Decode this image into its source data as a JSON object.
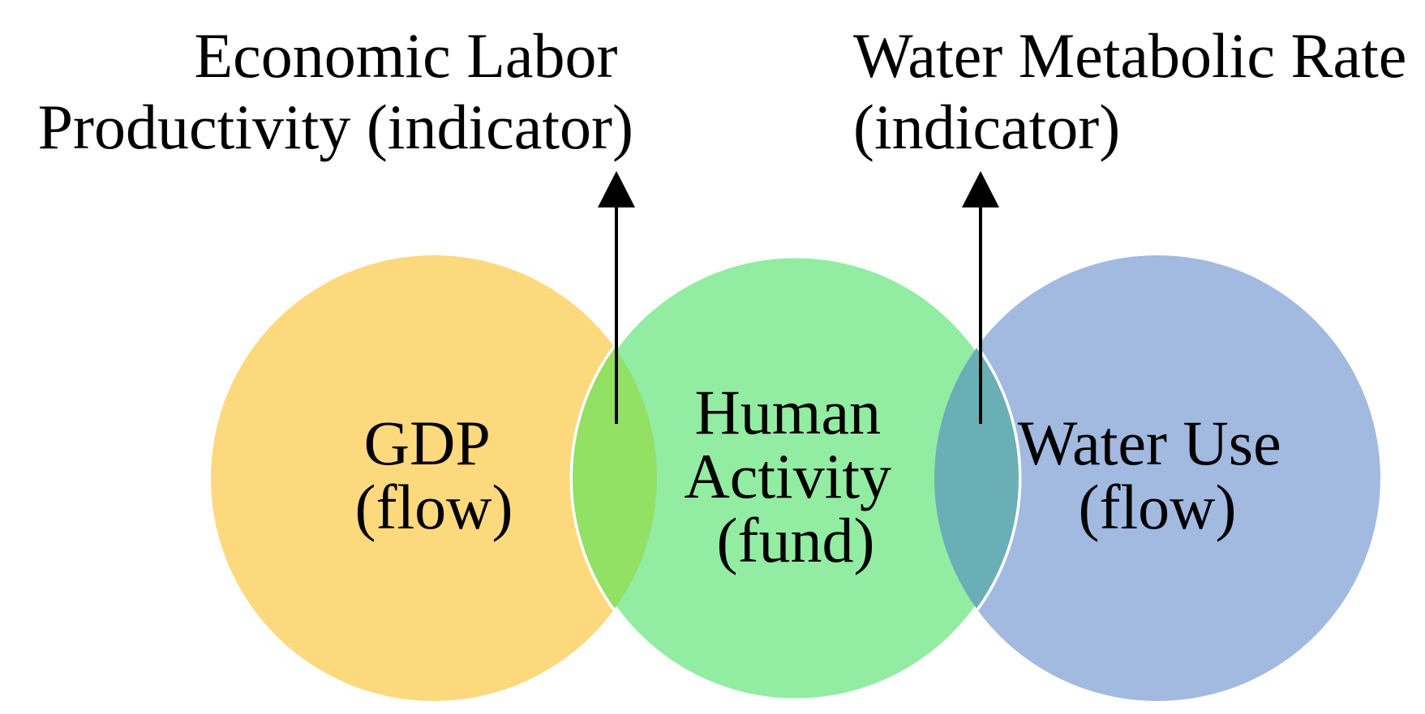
{
  "circles": [
    {
      "id": "gdp",
      "line1": "GDP",
      "line2": "(flow)",
      "color": "#fcd97d"
    },
    {
      "id": "human-activity",
      "line1": "Human",
      "line2": "Activity",
      "line3": "(fund)",
      "color": "#92eca2"
    },
    {
      "id": "water-use",
      "line1": "Water Use",
      "line2": "(flow)",
      "color": "#a2b9e0"
    }
  ],
  "overlaps": {
    "gdp_human": {
      "color": "#92e064"
    },
    "human_water": {
      "color": "#6aafb5"
    }
  },
  "indicators": [
    {
      "id": "economic-labor-productivity",
      "line1": "Economic Labor",
      "line2": "Productivity (indicator)"
    },
    {
      "id": "water-metabolic-rate",
      "line1": "Water Metabolic Rate",
      "line2": "(indicator)"
    }
  ],
  "colors": {
    "text": "#000000",
    "arrow": "#000000",
    "separator": "#ffffff",
    "background": "#ffffff"
  }
}
